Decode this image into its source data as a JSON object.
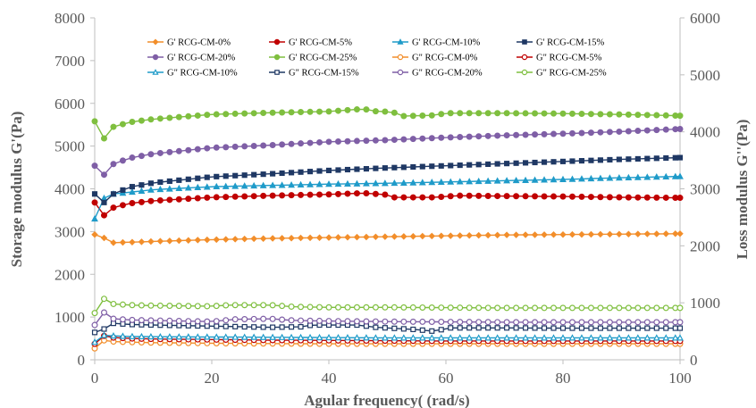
{
  "chart_data": {
    "type": "line",
    "xlabel": "Agular frequency( (rad/s)",
    "ylabel_left": "Storage modulus G'(Pa)",
    "ylabel_right": "Loss modulus G''(Pa)",
    "xlim": [
      0,
      100
    ],
    "ylim_left": [
      0,
      8000
    ],
    "ylim_right": [
      0,
      6000
    ],
    "x_ticks": [
      "0",
      "20",
      "40",
      "60",
      "80",
      "100"
    ],
    "y_left_ticks": [
      "0",
      "1000",
      "2000",
      "3000",
      "4000",
      "5000",
      "6000",
      "7000",
      "8000"
    ],
    "y_right_ticks": [
      "0",
      "1000",
      "2000",
      "3000",
      "4000",
      "5000",
      "6000"
    ],
    "grid": false,
    "legend_position": "top",
    "series": [
      {
        "name": "G' RCG-CM-0%",
        "axis": "left",
        "color": "#f28e2b",
        "marker": "diamond-filled",
        "points": [
          [
            0,
            2930
          ],
          [
            1.6,
            2850
          ],
          [
            3.2,
            2740
          ],
          [
            6,
            2750
          ],
          [
            10,
            2770
          ],
          [
            20,
            2810
          ],
          [
            30,
            2840
          ],
          [
            40,
            2860
          ],
          [
            50,
            2880
          ],
          [
            60,
            2900
          ],
          [
            70,
            2920
          ],
          [
            80,
            2930
          ],
          [
            90,
            2940
          ],
          [
            100,
            2950
          ]
        ]
      },
      {
        "name": "G' RCG-CM-5%",
        "axis": "left",
        "color": "#c00000",
        "marker": "circle-filled",
        "points": [
          [
            0,
            3680
          ],
          [
            1.6,
            3380
          ],
          [
            3.2,
            3560
          ],
          [
            6,
            3660
          ],
          [
            10,
            3720
          ],
          [
            20,
            3800
          ],
          [
            30,
            3840
          ],
          [
            40,
            3870
          ],
          [
            46,
            3900
          ],
          [
            50,
            3860
          ],
          [
            51,
            3800
          ],
          [
            58,
            3800
          ],
          [
            62,
            3840
          ],
          [
            70,
            3830
          ],
          [
            80,
            3820
          ],
          [
            90,
            3800
          ],
          [
            100,
            3790
          ]
        ]
      },
      {
        "name": "G' RCG-CM-10%",
        "axis": "left",
        "color": "#1f9bc9",
        "marker": "triangle-filled",
        "points": [
          [
            0,
            3300
          ],
          [
            1.6,
            3780
          ],
          [
            3.2,
            3880
          ],
          [
            6,
            3920
          ],
          [
            10,
            3980
          ],
          [
            20,
            4050
          ],
          [
            30,
            4080
          ],
          [
            40,
            4110
          ],
          [
            50,
            4130
          ],
          [
            60,
            4160
          ],
          [
            70,
            4190
          ],
          [
            80,
            4220
          ],
          [
            90,
            4260
          ],
          [
            100,
            4290
          ]
        ]
      },
      {
        "name": "G' RCG-CM-15%",
        "axis": "left",
        "color": "#1f3864",
        "marker": "square-filled",
        "points": [
          [
            0,
            3880
          ],
          [
            1.6,
            3680
          ],
          [
            3.2,
            3880
          ],
          [
            6,
            4040
          ],
          [
            10,
            4140
          ],
          [
            20,
            4280
          ],
          [
            30,
            4350
          ],
          [
            40,
            4430
          ],
          [
            50,
            4490
          ],
          [
            60,
            4540
          ],
          [
            70,
            4590
          ],
          [
            80,
            4640
          ],
          [
            90,
            4690
          ],
          [
            100,
            4730
          ]
        ]
      },
      {
        "name": "G' RCG-CM-20%",
        "axis": "left",
        "color": "#7f5fa6",
        "marker": "circle-filled",
        "points": [
          [
            0,
            4540
          ],
          [
            1.6,
            4330
          ],
          [
            3.2,
            4580
          ],
          [
            6,
            4720
          ],
          [
            10,
            4820
          ],
          [
            20,
            4960
          ],
          [
            30,
            5020
          ],
          [
            40,
            5100
          ],
          [
            50,
            5140
          ],
          [
            60,
            5200
          ],
          [
            70,
            5250
          ],
          [
            80,
            5290
          ],
          [
            90,
            5340
          ],
          [
            100,
            5400
          ]
        ]
      },
      {
        "name": "G' RCG-CM-25%",
        "axis": "left",
        "color": "#7fbf3f",
        "marker": "circle-filled",
        "points": [
          [
            0,
            5580
          ],
          [
            1.6,
            5180
          ],
          [
            3.2,
            5450
          ],
          [
            6,
            5560
          ],
          [
            10,
            5630
          ],
          [
            20,
            5740
          ],
          [
            30,
            5780
          ],
          [
            40,
            5810
          ],
          [
            45,
            5860
          ],
          [
            46,
            5880
          ],
          [
            47,
            5820
          ],
          [
            51,
            5800
          ],
          [
            52,
            5700
          ],
          [
            58,
            5720
          ],
          [
            60,
            5770
          ],
          [
            70,
            5770
          ],
          [
            80,
            5760
          ],
          [
            90,
            5740
          ],
          [
            100,
            5710
          ]
        ]
      },
      {
        "name": "G\" RCG-CM-0%",
        "axis": "right",
        "color": "#f28e2b",
        "marker": "circle-open",
        "points": [
          [
            0,
            200
          ],
          [
            1.6,
            340
          ],
          [
            3.2,
            320
          ],
          [
            6,
            310
          ],
          [
            10,
            300
          ],
          [
            20,
            290
          ],
          [
            30,
            285
          ],
          [
            40,
            280
          ],
          [
            50,
            280
          ],
          [
            60,
            280
          ],
          [
            70,
            280
          ],
          [
            80,
            280
          ],
          [
            90,
            280
          ],
          [
            100,
            280
          ]
        ]
      },
      {
        "name": "G\" RCG-CM-5%",
        "axis": "right",
        "color": "#c00000",
        "marker": "circle-open",
        "points": [
          [
            0,
            280
          ],
          [
            1.6,
            420
          ],
          [
            3.2,
            390
          ],
          [
            6,
            375
          ],
          [
            10,
            365
          ],
          [
            20,
            355
          ],
          [
            30,
            345
          ],
          [
            40,
            340
          ],
          [
            50,
            335
          ],
          [
            60,
            330
          ],
          [
            70,
            330
          ],
          [
            80,
            330
          ],
          [
            90,
            330
          ],
          [
            100,
            330
          ]
        ]
      },
      {
        "name": "G\" RCG-CM-10%",
        "axis": "right",
        "color": "#1f9bc9",
        "marker": "triangle-open",
        "points": [
          [
            0,
            310
          ],
          [
            1.6,
            430
          ],
          [
            3.2,
            420
          ],
          [
            6,
            410
          ],
          [
            10,
            405
          ],
          [
            20,
            400
          ],
          [
            30,
            395
          ],
          [
            40,
            390
          ],
          [
            50,
            385
          ],
          [
            60,
            385
          ],
          [
            70,
            385
          ],
          [
            80,
            385
          ],
          [
            90,
            385
          ],
          [
            100,
            385
          ]
        ]
      },
      {
        "name": "G\" RCG-CM-15%",
        "axis": "right",
        "color": "#1f3864",
        "marker": "square-open",
        "points": [
          [
            0,
            480
          ],
          [
            1.6,
            540
          ],
          [
            3.2,
            640
          ],
          [
            6,
            620
          ],
          [
            10,
            610
          ],
          [
            20,
            590
          ],
          [
            30,
            570
          ],
          [
            36,
            580
          ],
          [
            37,
            610
          ],
          [
            45,
            610
          ],
          [
            48,
            570
          ],
          [
            55,
            530
          ],
          [
            58,
            500
          ],
          [
            59,
            520
          ],
          [
            60,
            560
          ],
          [
            70,
            560
          ],
          [
            80,
            555
          ],
          [
            90,
            555
          ],
          [
            100,
            555
          ]
        ]
      },
      {
        "name": "G\" RCG-CM-20%",
        "axis": "right",
        "color": "#7f5fa6",
        "marker": "circle-open",
        "points": [
          [
            0,
            610
          ],
          [
            1.6,
            830
          ],
          [
            3.2,
            720
          ],
          [
            6,
            700
          ],
          [
            10,
            690
          ],
          [
            20,
            670
          ],
          [
            24,
            710
          ],
          [
            30,
            720
          ],
          [
            34,
            690
          ],
          [
            40,
            680
          ],
          [
            50,
            670
          ],
          [
            60,
            665
          ],
          [
            70,
            660
          ],
          [
            80,
            660
          ],
          [
            90,
            660
          ],
          [
            100,
            660
          ]
        ]
      },
      {
        "name": "G\" RCG-CM-25%",
        "axis": "right",
        "color": "#7fbf3f",
        "marker": "circle-open",
        "points": [
          [
            0,
            820
          ],
          [
            1.6,
            1070
          ],
          [
            3.2,
            980
          ],
          [
            6,
            960
          ],
          [
            10,
            950
          ],
          [
            20,
            940
          ],
          [
            23,
            960
          ],
          [
            30,
            960
          ],
          [
            34,
            930
          ],
          [
            40,
            920
          ],
          [
            50,
            920
          ],
          [
            60,
            915
          ],
          [
            70,
            910
          ],
          [
            80,
            910
          ],
          [
            90,
            910
          ],
          [
            100,
            910
          ]
        ]
      }
    ]
  }
}
